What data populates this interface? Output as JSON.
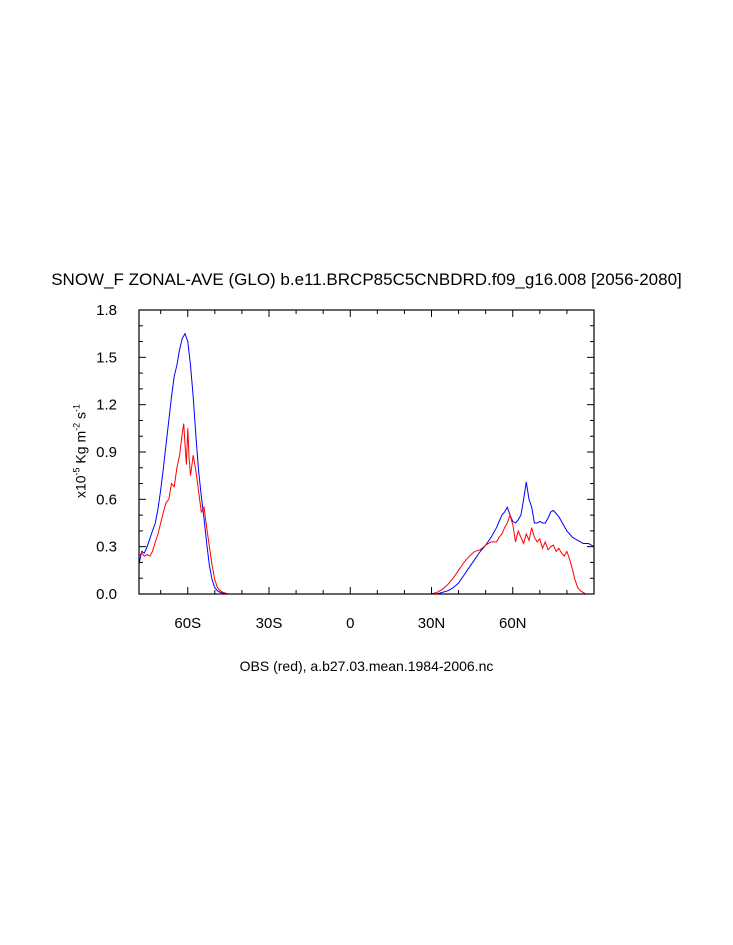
{
  "title": "SNOW_F ZONAL-AVE (GLO) b.e11.BRCP85C5CNBDRD.f09_g16.008 [2056-2080]",
  "colors": {
    "model": "#0000ff",
    "obs": "#ff0000",
    "axis": "#000000"
  },
  "chart_data": {
    "type": "line",
    "title": "SNOW_F ZONAL-AVE (GLO) b.e11.BRCP85C5CNBDRD.f09_g16.008 [2056-2080]",
    "xlabel": "OBS (red), a.b27.03.mean.1984-2006.nc",
    "ylabel": {
      "prefix": "x10",
      "exp1": "-5",
      "mid": " Kg m",
      "exp2": "-2",
      "mid2": " s",
      "exp3": "-1"
    },
    "xlim": [
      -78,
      90
    ],
    "ylim": [
      0.0,
      1.8
    ],
    "xticks": [
      {
        "value": -60,
        "label": "60S"
      },
      {
        "value": -30,
        "label": "30S"
      },
      {
        "value": 0,
        "label": "0"
      },
      {
        "value": 30,
        "label": "30N"
      },
      {
        "value": 60,
        "label": "60N"
      }
    ],
    "yticks": [
      {
        "value": 0.0,
        "label": "0.0"
      },
      {
        "value": 0.3,
        "label": "0.3"
      },
      {
        "value": 0.6,
        "label": "0.6"
      },
      {
        "value": 0.9,
        "label": "0.9"
      },
      {
        "value": 1.2,
        "label": "1.2"
      },
      {
        "value": 1.5,
        "label": "1.5"
      },
      {
        "value": 1.8,
        "label": "1.8"
      }
    ],
    "grid": false,
    "series": [
      {
        "color": "#0000ff",
        "x": [
          -78,
          -77,
          -76,
          -75,
          -74,
          -73,
          -72,
          -71,
          -70,
          -69,
          -68,
          -67,
          -66,
          -65,
          -64,
          -63,
          -62,
          -61,
          -60,
          -59,
          -58,
          -57,
          -56,
          -55,
          -54,
          -53,
          -52,
          -51,
          -50,
          -49,
          -48,
          -47,
          -46,
          -45,
          -44,
          -42,
          -40,
          -30,
          -20,
          -10,
          0,
          10,
          20,
          28,
          30,
          32,
          34,
          36,
          38,
          40,
          42,
          44,
          46,
          48,
          50,
          52,
          54,
          55,
          56,
          57,
          58,
          59,
          60,
          61,
          62,
          63,
          64,
          65,
          66,
          67,
          68,
          69,
          70,
          71,
          72,
          73,
          74,
          75,
          76,
          77,
          78,
          79,
          80,
          81,
          82,
          83,
          84,
          85,
          86,
          87,
          88,
          89,
          90
        ],
        "y": [
          0.19,
          0.27,
          0.26,
          0.3,
          0.35,
          0.4,
          0.45,
          0.54,
          0.66,
          0.8,
          0.95,
          1.1,
          1.25,
          1.38,
          1.45,
          1.55,
          1.62,
          1.65,
          1.6,
          1.45,
          1.25,
          1.0,
          0.78,
          0.62,
          0.48,
          0.32,
          0.18,
          0.09,
          0.04,
          0.02,
          0.01,
          0.005,
          0.0,
          0.0,
          0.0,
          0.0,
          0.0,
          0.0,
          0.0,
          0.0,
          0.0,
          0.0,
          0.0,
          0.0,
          0.0,
          0.0,
          0.01,
          0.02,
          0.04,
          0.07,
          0.12,
          0.17,
          0.22,
          0.27,
          0.31,
          0.36,
          0.42,
          0.46,
          0.5,
          0.52,
          0.55,
          0.5,
          0.46,
          0.45,
          0.47,
          0.5,
          0.6,
          0.71,
          0.6,
          0.55,
          0.45,
          0.45,
          0.46,
          0.45,
          0.45,
          0.48,
          0.52,
          0.53,
          0.51,
          0.49,
          0.46,
          0.43,
          0.4,
          0.38,
          0.36,
          0.35,
          0.34,
          0.33,
          0.32,
          0.32,
          0.32,
          0.31,
          0.3
        ]
      },
      {
        "color": "#ff0000",
        "x": [
          -78,
          -77,
          -76,
          -75,
          -74,
          -73,
          -72,
          -71,
          -70,
          -69,
          -68,
          -67,
          -66,
          -65,
          -64,
          -63,
          -62,
          -61.5,
          -61,
          -60.5,
          -60,
          -59.5,
          -59,
          -58,
          -57,
          -56,
          -55,
          -54,
          -53,
          -52,
          -51,
          -50,
          -49,
          -48,
          -47,
          -46,
          -45,
          -44,
          -42,
          -40,
          -30,
          -20,
          -10,
          0,
          10,
          20,
          28,
          30,
          32,
          34,
          36,
          38,
          40,
          42,
          44,
          46,
          48,
          50,
          52,
          54,
          55,
          56,
          57,
          58,
          59,
          60,
          61,
          62,
          63,
          64,
          65,
          66,
          67,
          68,
          69,
          70,
          71,
          72,
          73,
          74,
          75,
          76,
          77,
          78,
          79,
          80,
          81,
          82,
          83,
          84,
          85,
          86,
          87,
          88,
          89,
          90
        ],
        "y": [
          0.24,
          0.26,
          0.24,
          0.25,
          0.24,
          0.27,
          0.33,
          0.38,
          0.45,
          0.52,
          0.58,
          0.6,
          0.7,
          0.68,
          0.8,
          0.88,
          1.02,
          1.08,
          0.95,
          0.82,
          1.05,
          0.86,
          0.75,
          0.88,
          0.78,
          0.65,
          0.52,
          0.55,
          0.42,
          0.3,
          0.18,
          0.09,
          0.04,
          0.02,
          0.01,
          0.005,
          0.0,
          0.0,
          0.0,
          0.0,
          0.0,
          0.0,
          0.0,
          0.0,
          0.0,
          0.0,
          0.0,
          0.0,
          0.01,
          0.03,
          0.06,
          0.1,
          0.15,
          0.2,
          0.24,
          0.27,
          0.28,
          0.31,
          0.33,
          0.33,
          0.36,
          0.38,
          0.42,
          0.45,
          0.5,
          0.44,
          0.33,
          0.4,
          0.36,
          0.32,
          0.38,
          0.34,
          0.42,
          0.36,
          0.33,
          0.35,
          0.29,
          0.33,
          0.28,
          0.3,
          0.31,
          0.27,
          0.29,
          0.26,
          0.24,
          0.27,
          0.22,
          0.16,
          0.09,
          0.04,
          0.02,
          0.01,
          0.0,
          0.0,
          0.0,
          0.0
        ]
      }
    ]
  }
}
